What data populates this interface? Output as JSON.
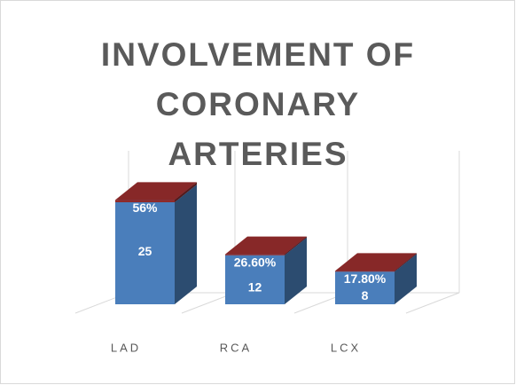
{
  "chart_data": {
    "type": "bar3d",
    "title": "INVOLVEMENT OF CORONARY ARTERIES",
    "categories": [
      "LAD",
      "RCA",
      "LCX"
    ],
    "series": [
      {
        "color": "#4a7ebb",
        "values": [
          25,
          12,
          8
        ]
      },
      {
        "color": "#8e2a2a",
        "values": [
          0.56,
          0.266,
          0.178
        ],
        "value_labels": [
          "56%",
          "26.60%",
          "17.80%"
        ]
      }
    ],
    "ylim": [
      0,
      30
    ]
  }
}
